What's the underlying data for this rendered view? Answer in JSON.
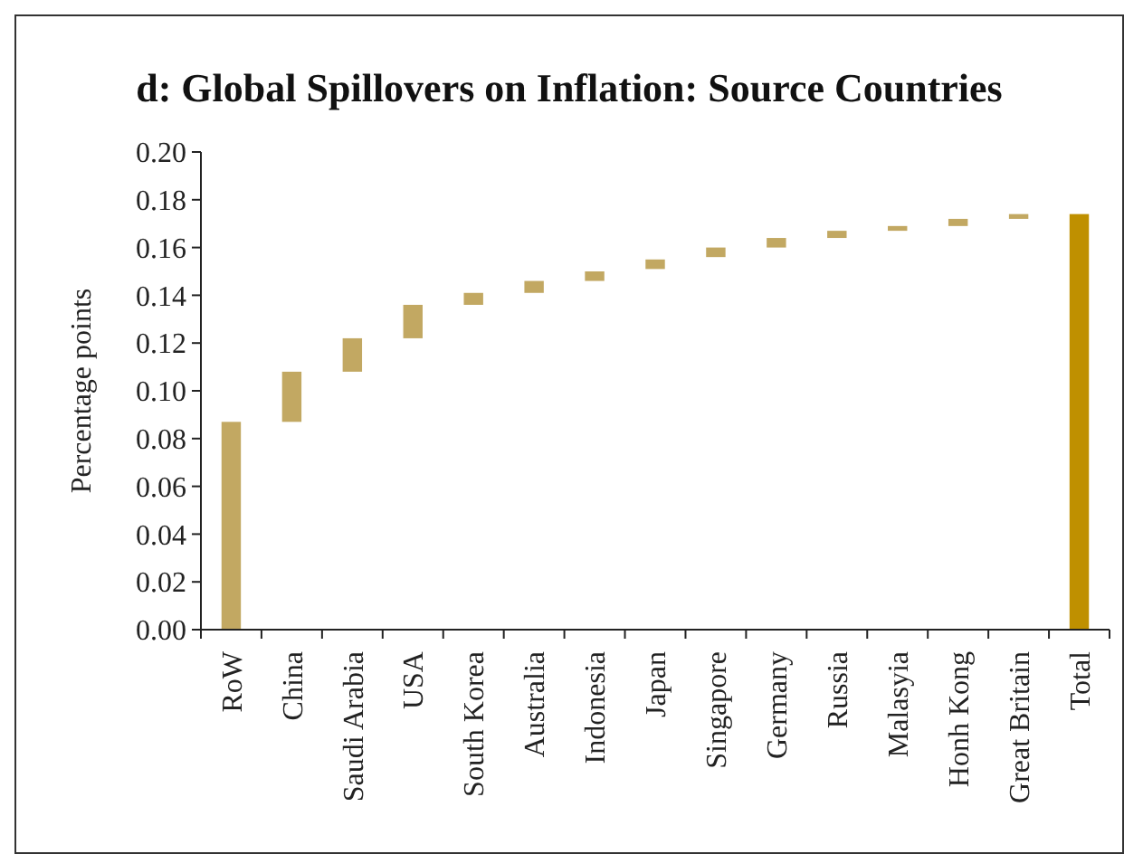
{
  "chart_data": {
    "type": "bar",
    "title": "d: Global Spillovers on Inflation: Source Countries",
    "ylabel": "Percentage points",
    "categories": [
      "RoW",
      "China",
      "Saudi Arabia",
      "USA",
      "South Korea",
      "Australia",
      "Indonesia",
      "Japan",
      "Singapore",
      "Germany",
      "Russia",
      "Malasyia",
      "Honh Kong",
      "Great Britain",
      "Total"
    ],
    "values": [
      0.087,
      0.021,
      0.014,
      0.014,
      0.005,
      0.005,
      0.004,
      0.004,
      0.004,
      0.004,
      0.003,
      0.002,
      0.003,
      0.002,
      0.174
    ],
    "base": [
      0,
      0.087,
      0.108,
      0.122,
      0.136,
      0.141,
      0.146,
      0.151,
      0.156,
      0.16,
      0.164,
      0.167,
      0.169,
      0.172,
      0
    ],
    "colors": [
      "#c2a862",
      "#c2a862",
      "#c2a862",
      "#c2a862",
      "#c2a862",
      "#c2a862",
      "#c2a862",
      "#c2a862",
      "#c2a862",
      "#c2a862",
      "#c2a862",
      "#c2a862",
      "#c2a862",
      "#c2a862",
      "#bf9000"
    ],
    "ylim": [
      0,
      0.2
    ],
    "yticks": [
      {
        "value": 0,
        "label": "0.00"
      },
      {
        "value": 0.02,
        "label": "0.02"
      },
      {
        "value": 0.04,
        "label": "0.04"
      },
      {
        "value": 0.06,
        "label": "0.06"
      },
      {
        "value": 0.08,
        "label": "0.08"
      },
      {
        "value": 0.1,
        "label": "0.10"
      },
      {
        "value": 0.12,
        "label": "0.12"
      },
      {
        "value": 0.14,
        "label": "0.14"
      },
      {
        "value": 0.16,
        "label": "0.16"
      },
      {
        "value": 0.18,
        "label": "0.18"
      },
      {
        "value": 0.2,
        "label": "0.20"
      }
    ]
  }
}
